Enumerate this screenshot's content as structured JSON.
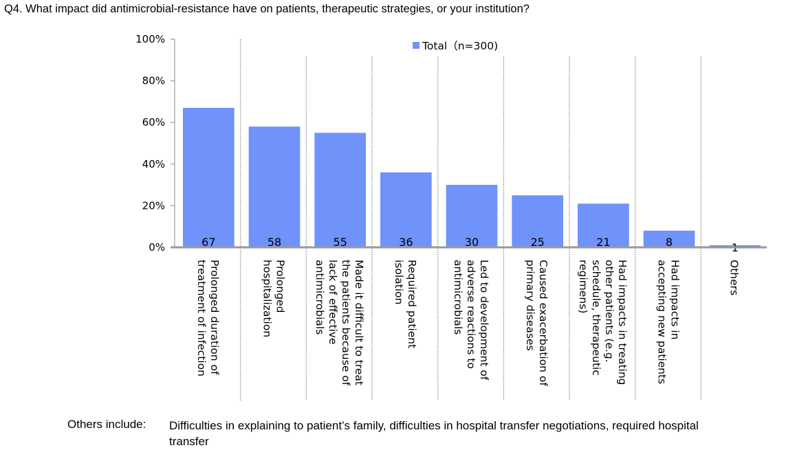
{
  "question": "Q4. What impact did antimicrobial-resistance have on patients, therapeutic strategies, or your institution?",
  "chart_data": {
    "type": "bar",
    "categories": [
      "Prolonged duration of\ntreatment of infection",
      "Prolonged\nhospitalization",
      "Made it difficult to treat\nthe patients because of\nlack of effective\nantimicrobials",
      "Required patient\nisolation",
      "Led to development of\nadverse reactions to\nantimicrobials",
      "Caused exacerbation of\nprimary diseases",
      "Had impacts in treating\nother patients (e.g.\nschedule, therapeutic\nregimens)",
      "Had impacts in\naccepting new patients",
      "Others"
    ],
    "series": [
      {
        "name": "Total（n=300)",
        "values": [
          67,
          58,
          55,
          36,
          30,
          25,
          21,
          8,
          1
        ],
        "color": "#6f92fb"
      }
    ],
    "data_labels": [
      "67",
      "58",
      "55",
      "36",
      "30",
      "25",
      "21",
      "8",
      "1"
    ],
    "yticks": [
      "0%",
      "20%",
      "40%",
      "60%",
      "80%",
      "100%"
    ],
    "ylim": [
      0,
      100
    ],
    "legend_position": "top",
    "grid": "vertical dotted category separators"
  },
  "note": {
    "label": "Others include:",
    "text": "Difficulties in explaining to patient’s family, difficulties in hospital transfer negotiations, required hospital transfer"
  }
}
